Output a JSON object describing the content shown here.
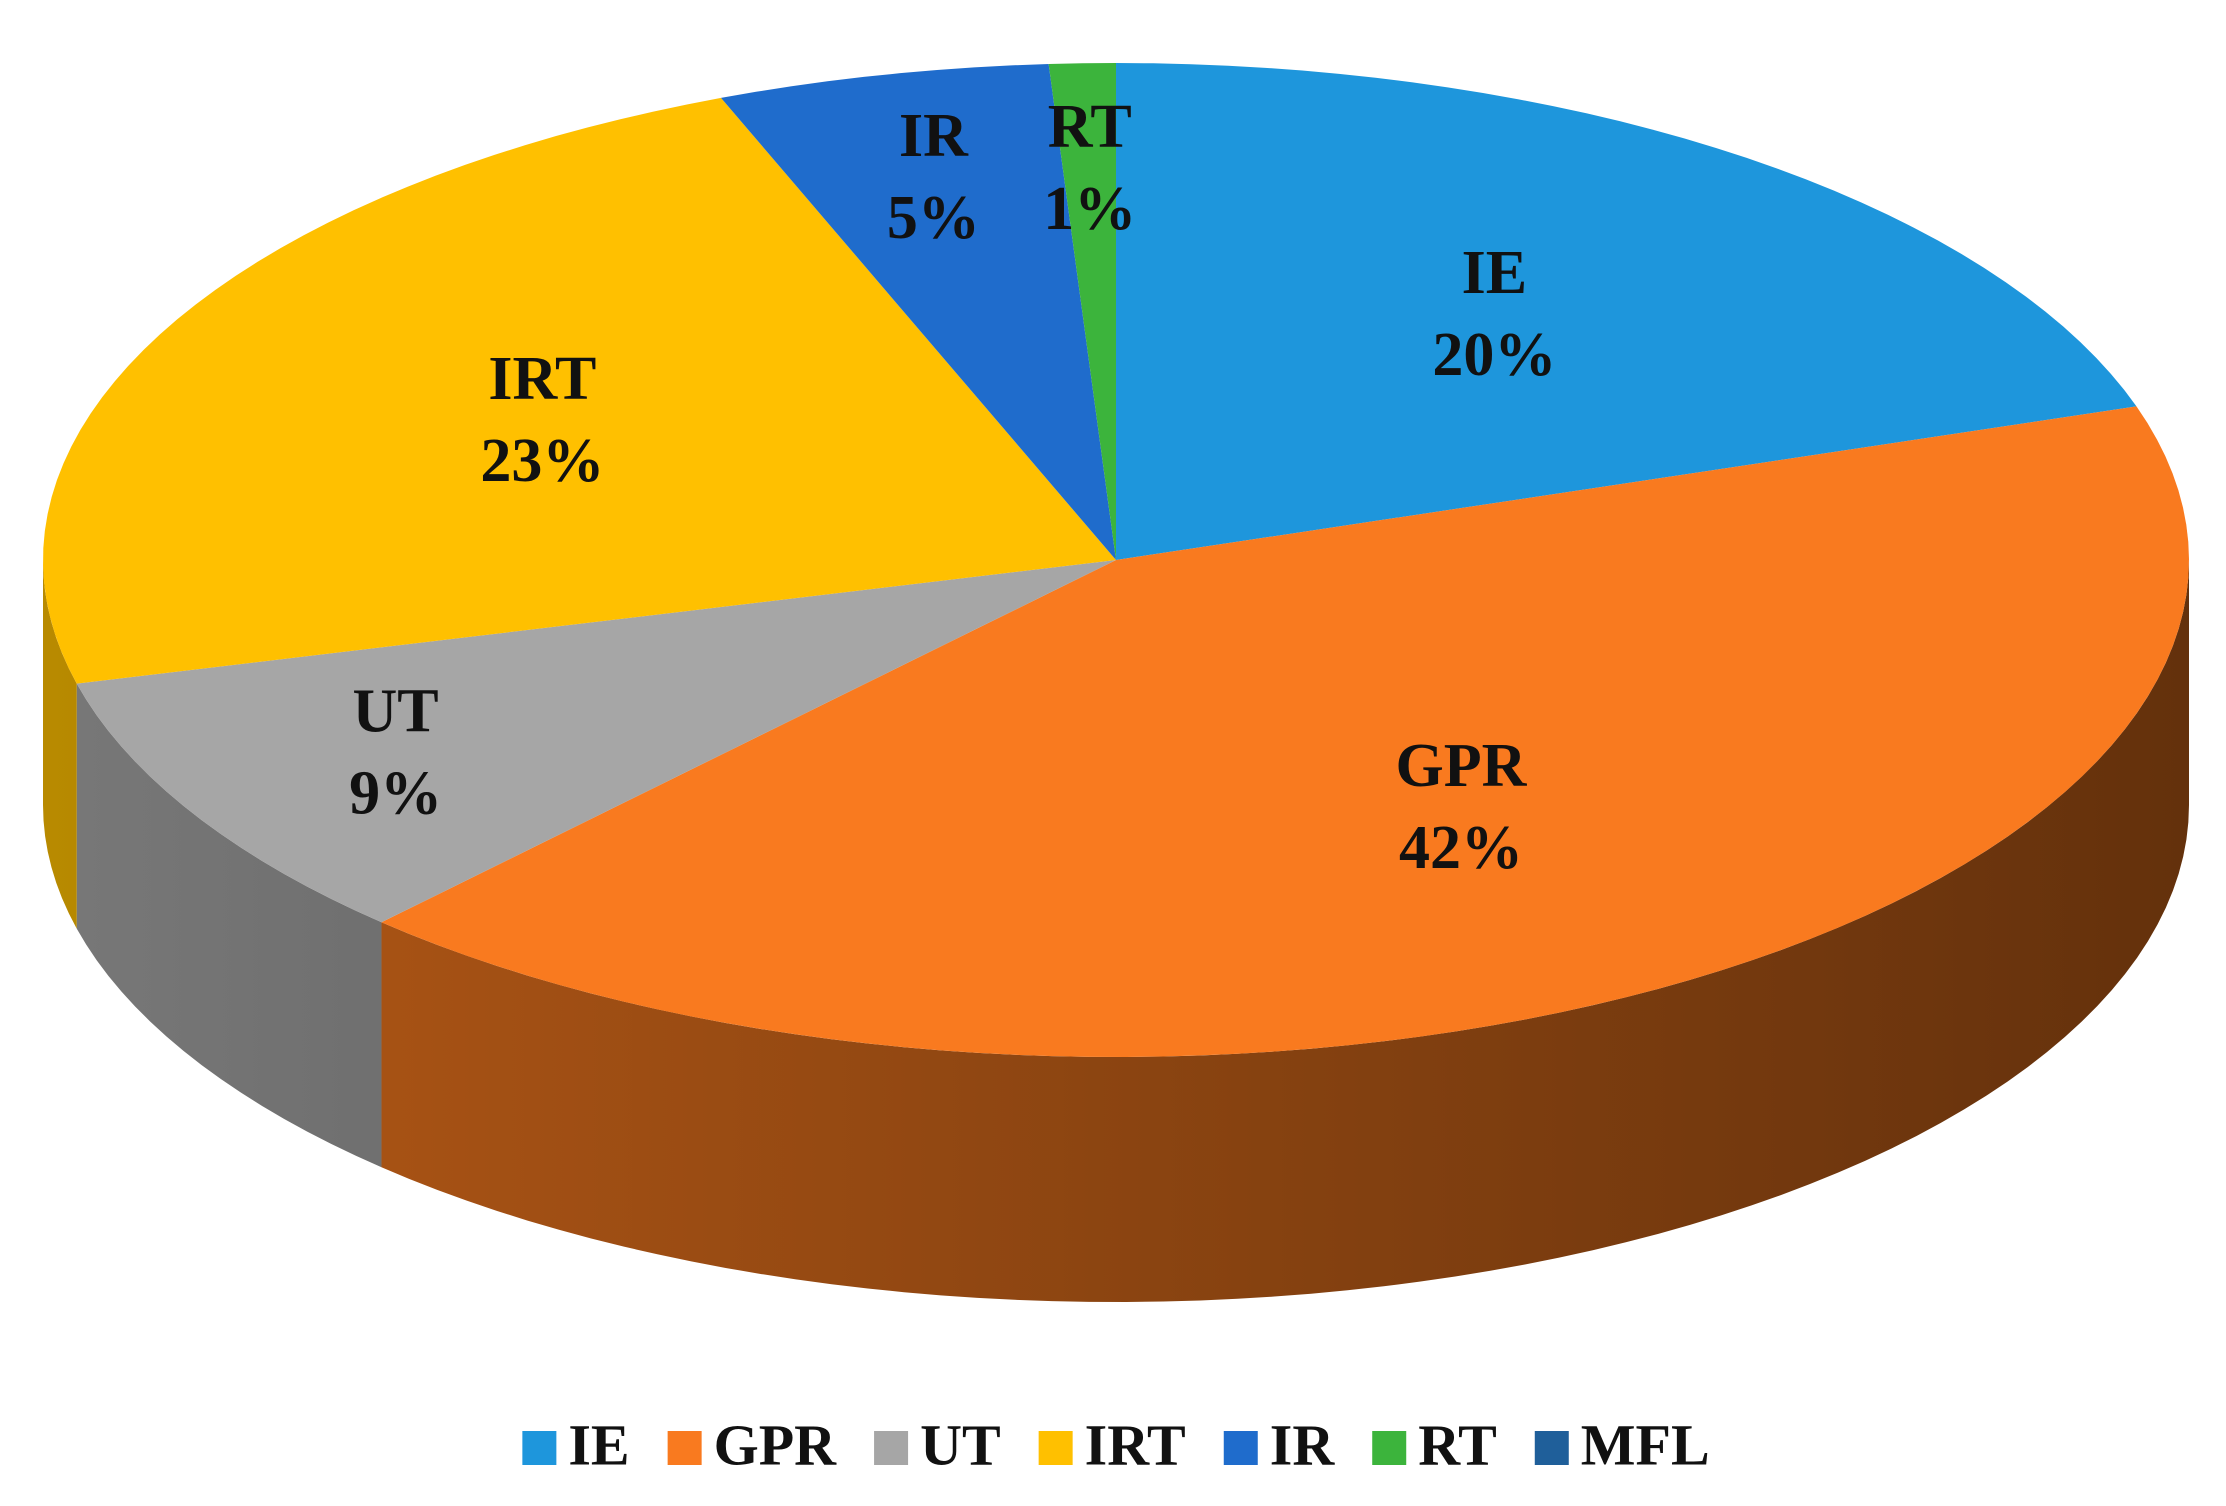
{
  "chart_data": {
    "type": "pie",
    "categories": [
      "IE",
      "GPR",
      "UT",
      "IRT",
      "IR",
      "RT",
      "MFL"
    ],
    "values": [
      20,
      42,
      9,
      23,
      5,
      1,
      0
    ],
    "value_labels": [
      "20%",
      "42%",
      "9%",
      "23%",
      "5%",
      "1%",
      null
    ],
    "colors": [
      "#1e96dc",
      "#f97a1f",
      "#a6a6a6",
      "#ffc000",
      "#1f6ccc",
      "#3cb43c",
      "#1f5f9a"
    ],
    "legend": "bottom"
  }
}
